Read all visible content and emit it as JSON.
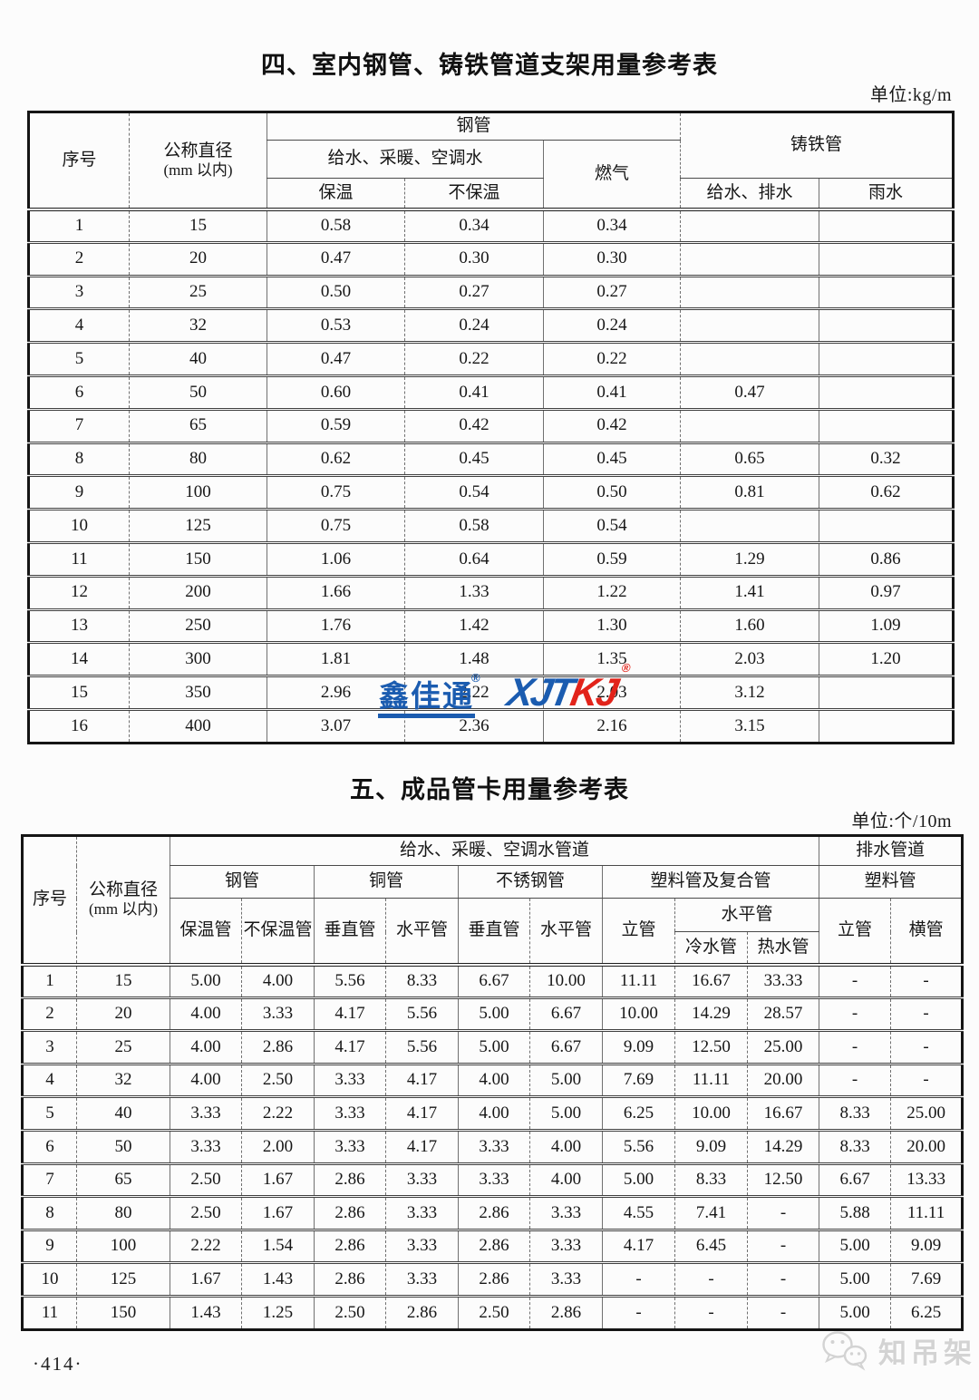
{
  "page": {
    "number": "·414·"
  },
  "colors": {
    "brand_blue": "#1b5cb0",
    "brand_red": "#e2231a",
    "watermark_gray": "#d3d3d3"
  },
  "table4": {
    "title": "四、室内钢管、铸铁管道支架用量参考表",
    "unit": "单位:kg/m",
    "header": {
      "no": "序号",
      "dn_line1": "公称直径",
      "dn_line2": "(mm 以内)",
      "steel_pipe": "钢管",
      "water_heating_ac": "给水、采暖、空调水",
      "insulated": "保温",
      "uninsulated": "不保温",
      "gas": "燃气",
      "cast_iron_pipe": "铸铁管",
      "water_drain": "给水、排水",
      "rain": "雨水"
    },
    "rows": [
      [
        "1",
        "15",
        "0.58",
        "0.34",
        "0.34",
        "",
        ""
      ],
      [
        "2",
        "20",
        "0.47",
        "0.30",
        "0.30",
        "",
        ""
      ],
      [
        "3",
        "25",
        "0.50",
        "0.27",
        "0.27",
        "",
        ""
      ],
      [
        "4",
        "32",
        "0.53",
        "0.24",
        "0.24",
        "",
        ""
      ],
      [
        "5",
        "40",
        "0.47",
        "0.22",
        "0.22",
        "",
        ""
      ],
      [
        "6",
        "50",
        "0.60",
        "0.41",
        "0.41",
        "0.47",
        ""
      ],
      [
        "7",
        "65",
        "0.59",
        "0.42",
        "0.42",
        "",
        ""
      ],
      [
        "8",
        "80",
        "0.62",
        "0.45",
        "0.45",
        "0.65",
        "0.32"
      ],
      [
        "9",
        "100",
        "0.75",
        "0.54",
        "0.50",
        "0.81",
        "0.62"
      ],
      [
        "10",
        "125",
        "0.75",
        "0.58",
        "0.54",
        "",
        ""
      ],
      [
        "11",
        "150",
        "1.06",
        "0.64",
        "0.59",
        "1.29",
        "0.86"
      ],
      [
        "12",
        "200",
        "1.66",
        "1.33",
        "1.22",
        "1.41",
        "0.97"
      ],
      [
        "13",
        "250",
        "1.76",
        "1.42",
        "1.30",
        "1.60",
        "1.09"
      ],
      [
        "14",
        "300",
        "1.81",
        "1.48",
        "1.35",
        "2.03",
        "1.20"
      ],
      [
        "15",
        "350",
        "2.96",
        "2.22",
        "2.03",
        "3.12",
        ""
      ],
      [
        "16",
        "400",
        "3.07",
        "2.36",
        "2.16",
        "3.15",
        ""
      ]
    ]
  },
  "table5": {
    "title": "五、成品管卡用量参考表",
    "unit": "单位:个/10m",
    "header": {
      "no": "序号",
      "dn_line1": "公称直径",
      "dn_line2": "(mm 以内)",
      "supply_group": "给水、采暖、空调水管道",
      "drain_group": "排水管道",
      "steel": "钢管",
      "copper": "铜管",
      "stainless": "不锈钢管",
      "plastic_composite": "塑料管及复合管",
      "plastic": "塑料管",
      "insulated": "保温管",
      "uninsulated": "不保温管",
      "copper_vertical": "垂直管",
      "copper_horizontal": "水平管",
      "stainless_vertical": "垂直管",
      "stainless_horizontal": "水平管",
      "riser": "立管",
      "horizontal_group": "水平管",
      "cold_water": "冷水管",
      "hot_water": "热水管",
      "drain_riser": "立管",
      "drain_horizontal": "横管"
    },
    "rows": [
      [
        "1",
        "15",
        "5.00",
        "4.00",
        "5.56",
        "8.33",
        "6.67",
        "10.00",
        "11.11",
        "16.67",
        "33.33",
        "-",
        "-"
      ],
      [
        "2",
        "20",
        "4.00",
        "3.33",
        "4.17",
        "5.56",
        "5.00",
        "6.67",
        "10.00",
        "14.29",
        "28.57",
        "-",
        "-"
      ],
      [
        "3",
        "25",
        "4.00",
        "2.86",
        "4.17",
        "5.56",
        "5.00",
        "6.67",
        "9.09",
        "12.50",
        "25.00",
        "-",
        "-"
      ],
      [
        "4",
        "32",
        "4.00",
        "2.50",
        "3.33",
        "4.17",
        "4.00",
        "5.00",
        "7.69",
        "11.11",
        "20.00",
        "-",
        "-"
      ],
      [
        "5",
        "40",
        "3.33",
        "2.22",
        "3.33",
        "4.17",
        "4.00",
        "5.00",
        "6.25",
        "10.00",
        "16.67",
        "8.33",
        "25.00"
      ],
      [
        "6",
        "50",
        "3.33",
        "2.00",
        "3.33",
        "4.17",
        "3.33",
        "4.00",
        "5.56",
        "9.09",
        "14.29",
        "8.33",
        "20.00"
      ],
      [
        "7",
        "65",
        "2.50",
        "1.67",
        "2.86",
        "3.33",
        "3.33",
        "4.00",
        "5.00",
        "8.33",
        "12.50",
        "6.67",
        "13.33"
      ],
      [
        "8",
        "80",
        "2.50",
        "1.67",
        "2.86",
        "3.33",
        "2.86",
        "3.33",
        "4.55",
        "7.41",
        "-",
        "5.88",
        "11.11"
      ],
      [
        "9",
        "100",
        "2.22",
        "1.54",
        "2.86",
        "3.33",
        "2.86",
        "3.33",
        "4.17",
        "6.45",
        "-",
        "5.00",
        "9.09"
      ],
      [
        "10",
        "125",
        "1.67",
        "1.43",
        "2.86",
        "3.33",
        "2.86",
        "3.33",
        "-",
        "-",
        "-",
        "5.00",
        "7.69"
      ],
      [
        "11",
        "150",
        "1.43",
        "1.25",
        "2.50",
        "2.86",
        "2.50",
        "2.86",
        "-",
        "-",
        "-",
        "5.00",
        "6.25"
      ]
    ]
  },
  "watermarks": {
    "xjt_cn": "鑫佳通",
    "xjt_reg1": "®",
    "xjt_latin_blue": "XJT",
    "xjt_latin_red": "KJ",
    "xjt_reg2": "®",
    "wechat_label": "知吊架"
  }
}
